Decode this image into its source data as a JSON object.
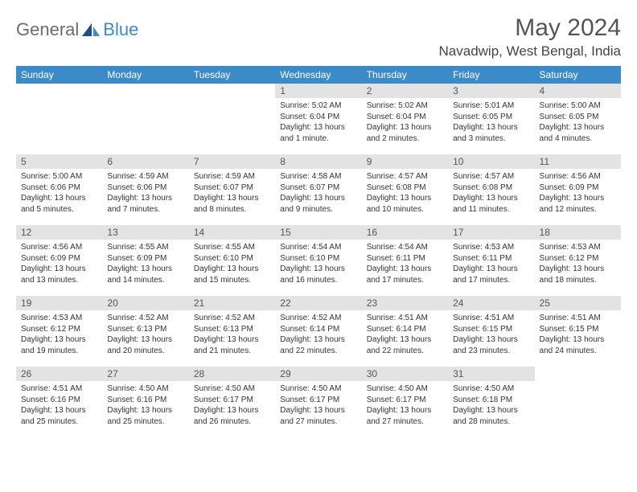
{
  "logo": {
    "text1": "General",
    "text2": "Blue",
    "color1": "#6b6b6b",
    "color2": "#3b8bc9"
  },
  "title": "May 2024",
  "location": "Navadwip, West Bengal, India",
  "weekdays": [
    "Sunday",
    "Monday",
    "Tuesday",
    "Wednesday",
    "Thursday",
    "Friday",
    "Saturday"
  ],
  "colors": {
    "header_bg": "#3b8bc9",
    "header_fg": "#ffffff",
    "daynum_bg": "#e3e3e3",
    "text": "#333333"
  },
  "weeks": [
    [
      {
        "day": "",
        "sunrise": "",
        "sunset": "",
        "daylight": ""
      },
      {
        "day": "",
        "sunrise": "",
        "sunset": "",
        "daylight": ""
      },
      {
        "day": "",
        "sunrise": "",
        "sunset": "",
        "daylight": ""
      },
      {
        "day": "1",
        "sunrise": "Sunrise: 5:02 AM",
        "sunset": "Sunset: 6:04 PM",
        "daylight": "Daylight: 13 hours and 1 minute."
      },
      {
        "day": "2",
        "sunrise": "Sunrise: 5:02 AM",
        "sunset": "Sunset: 6:04 PM",
        "daylight": "Daylight: 13 hours and 2 minutes."
      },
      {
        "day": "3",
        "sunrise": "Sunrise: 5:01 AM",
        "sunset": "Sunset: 6:05 PM",
        "daylight": "Daylight: 13 hours and 3 minutes."
      },
      {
        "day": "4",
        "sunrise": "Sunrise: 5:00 AM",
        "sunset": "Sunset: 6:05 PM",
        "daylight": "Daylight: 13 hours and 4 minutes."
      }
    ],
    [
      {
        "day": "5",
        "sunrise": "Sunrise: 5:00 AM",
        "sunset": "Sunset: 6:06 PM",
        "daylight": "Daylight: 13 hours and 5 minutes."
      },
      {
        "day": "6",
        "sunrise": "Sunrise: 4:59 AM",
        "sunset": "Sunset: 6:06 PM",
        "daylight": "Daylight: 13 hours and 7 minutes."
      },
      {
        "day": "7",
        "sunrise": "Sunrise: 4:59 AM",
        "sunset": "Sunset: 6:07 PM",
        "daylight": "Daylight: 13 hours and 8 minutes."
      },
      {
        "day": "8",
        "sunrise": "Sunrise: 4:58 AM",
        "sunset": "Sunset: 6:07 PM",
        "daylight": "Daylight: 13 hours and 9 minutes."
      },
      {
        "day": "9",
        "sunrise": "Sunrise: 4:57 AM",
        "sunset": "Sunset: 6:08 PM",
        "daylight": "Daylight: 13 hours and 10 minutes."
      },
      {
        "day": "10",
        "sunrise": "Sunrise: 4:57 AM",
        "sunset": "Sunset: 6:08 PM",
        "daylight": "Daylight: 13 hours and 11 minutes."
      },
      {
        "day": "11",
        "sunrise": "Sunrise: 4:56 AM",
        "sunset": "Sunset: 6:09 PM",
        "daylight": "Daylight: 13 hours and 12 minutes."
      }
    ],
    [
      {
        "day": "12",
        "sunrise": "Sunrise: 4:56 AM",
        "sunset": "Sunset: 6:09 PM",
        "daylight": "Daylight: 13 hours and 13 minutes."
      },
      {
        "day": "13",
        "sunrise": "Sunrise: 4:55 AM",
        "sunset": "Sunset: 6:09 PM",
        "daylight": "Daylight: 13 hours and 14 minutes."
      },
      {
        "day": "14",
        "sunrise": "Sunrise: 4:55 AM",
        "sunset": "Sunset: 6:10 PM",
        "daylight": "Daylight: 13 hours and 15 minutes."
      },
      {
        "day": "15",
        "sunrise": "Sunrise: 4:54 AM",
        "sunset": "Sunset: 6:10 PM",
        "daylight": "Daylight: 13 hours and 16 minutes."
      },
      {
        "day": "16",
        "sunrise": "Sunrise: 4:54 AM",
        "sunset": "Sunset: 6:11 PM",
        "daylight": "Daylight: 13 hours and 17 minutes."
      },
      {
        "day": "17",
        "sunrise": "Sunrise: 4:53 AM",
        "sunset": "Sunset: 6:11 PM",
        "daylight": "Daylight: 13 hours and 17 minutes."
      },
      {
        "day": "18",
        "sunrise": "Sunrise: 4:53 AM",
        "sunset": "Sunset: 6:12 PM",
        "daylight": "Daylight: 13 hours and 18 minutes."
      }
    ],
    [
      {
        "day": "19",
        "sunrise": "Sunrise: 4:53 AM",
        "sunset": "Sunset: 6:12 PM",
        "daylight": "Daylight: 13 hours and 19 minutes."
      },
      {
        "day": "20",
        "sunrise": "Sunrise: 4:52 AM",
        "sunset": "Sunset: 6:13 PM",
        "daylight": "Daylight: 13 hours and 20 minutes."
      },
      {
        "day": "21",
        "sunrise": "Sunrise: 4:52 AM",
        "sunset": "Sunset: 6:13 PM",
        "daylight": "Daylight: 13 hours and 21 minutes."
      },
      {
        "day": "22",
        "sunrise": "Sunrise: 4:52 AM",
        "sunset": "Sunset: 6:14 PM",
        "daylight": "Daylight: 13 hours and 22 minutes."
      },
      {
        "day": "23",
        "sunrise": "Sunrise: 4:51 AM",
        "sunset": "Sunset: 6:14 PM",
        "daylight": "Daylight: 13 hours and 22 minutes."
      },
      {
        "day": "24",
        "sunrise": "Sunrise: 4:51 AM",
        "sunset": "Sunset: 6:15 PM",
        "daylight": "Daylight: 13 hours and 23 minutes."
      },
      {
        "day": "25",
        "sunrise": "Sunrise: 4:51 AM",
        "sunset": "Sunset: 6:15 PM",
        "daylight": "Daylight: 13 hours and 24 minutes."
      }
    ],
    [
      {
        "day": "26",
        "sunrise": "Sunrise: 4:51 AM",
        "sunset": "Sunset: 6:16 PM",
        "daylight": "Daylight: 13 hours and 25 minutes."
      },
      {
        "day": "27",
        "sunrise": "Sunrise: 4:50 AM",
        "sunset": "Sunset: 6:16 PM",
        "daylight": "Daylight: 13 hours and 25 minutes."
      },
      {
        "day": "28",
        "sunrise": "Sunrise: 4:50 AM",
        "sunset": "Sunset: 6:17 PM",
        "daylight": "Daylight: 13 hours and 26 minutes."
      },
      {
        "day": "29",
        "sunrise": "Sunrise: 4:50 AM",
        "sunset": "Sunset: 6:17 PM",
        "daylight": "Daylight: 13 hours and 27 minutes."
      },
      {
        "day": "30",
        "sunrise": "Sunrise: 4:50 AM",
        "sunset": "Sunset: 6:17 PM",
        "daylight": "Daylight: 13 hours and 27 minutes."
      },
      {
        "day": "31",
        "sunrise": "Sunrise: 4:50 AM",
        "sunset": "Sunset: 6:18 PM",
        "daylight": "Daylight: 13 hours and 28 minutes."
      },
      {
        "day": "",
        "sunrise": "",
        "sunset": "",
        "daylight": ""
      }
    ]
  ]
}
